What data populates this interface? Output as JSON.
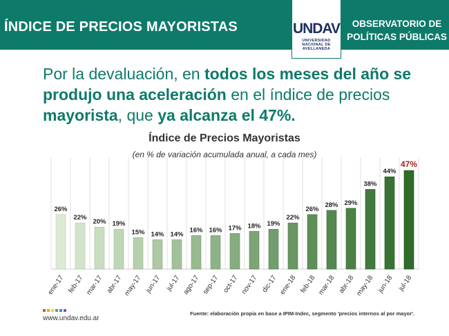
{
  "header": {
    "title": "ÍNDICE DE PRECIOS MAYORISTAS",
    "logo_text": "UNDAV",
    "logo_lines": [
      "UNIVERSIDAD",
      "NACIONAL DE",
      "AVELLANEDA"
    ],
    "observatory_lines": [
      "OBSERVATORIO DE",
      "POLÍTICAS PÚBLICAS"
    ]
  },
  "headline": {
    "parts": [
      {
        "text": "Por la devaluación, en ",
        "bold": false
      },
      {
        "text": "todos los meses del año se produjo una aceleración",
        "bold": true
      },
      {
        "text": " en el índice de precios ",
        "bold": false
      },
      {
        "text": "mayorista",
        "bold": true
      },
      {
        "text": ", que ",
        "bold": false
      },
      {
        "text": "ya alcanza el 47%.",
        "bold": true
      }
    ]
  },
  "chart_data": {
    "type": "bar",
    "title": "Índice de Precios Mayoristas",
    "subtitle": "(en % de variación acumulada anual, a cada mes)",
    "categories": [
      "ene-17",
      "feb-17",
      "mar-17",
      "abr-17",
      "may-17",
      "jun-17",
      "jul-17",
      "ago-17",
      "sep-17",
      "oct-17",
      "nov-17",
      "dic-17",
      "ene-18",
      "feb-18",
      "mar-18",
      "abr-18",
      "may-18",
      "jun-18",
      "jul-18"
    ],
    "values": [
      26,
      22,
      20,
      19,
      15,
      14,
      14,
      16,
      16,
      17,
      18,
      19,
      22,
      26,
      28,
      29,
      38,
      44,
      47
    ],
    "value_labels": [
      "26%",
      "22%",
      "20%",
      "19%",
      "15%",
      "14%",
      "14%",
      "16%",
      "16%",
      "17%",
      "18%",
      "19%",
      "22%",
      "26%",
      "28%",
      "29%",
      "38%",
      "44%",
      "47%"
    ],
    "ylim": [
      0,
      50
    ],
    "grid": "vertical",
    "highlight_last_color": "#b0221f",
    "bar_color_start": "#dcebd3",
    "bar_color_end": "#2f6c2a"
  },
  "footer": {
    "url": "www.undav.edu.ar",
    "source": "Fuente: elaboración propia en base a IPIM-Indec, segmento 'precios internos al por mayor'."
  },
  "colors": {
    "brand": "#0d7a6a",
    "logo": "#1d2f63",
    "dots": [
      "#e04e3c",
      "#f39c33",
      "#f4d03f",
      "#5aa848",
      "#3a89c9",
      "#8a4fa5"
    ]
  }
}
